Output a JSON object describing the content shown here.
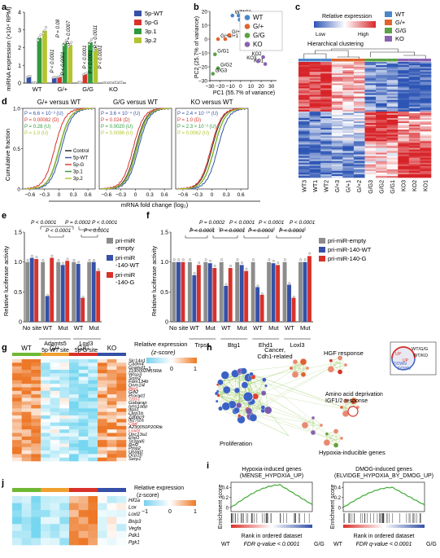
{
  "panels": {
    "a": {
      "letter": "a",
      "chart_data": {
        "type": "bar",
        "ylabel": "miRNA expression (×10⁴ RPM)",
        "ylim": [
          0,
          4
        ],
        "yticks": [
          "0",
          "1",
          "2",
          "3",
          "4"
        ],
        "categories": [
          "WT",
          "G/+",
          "G/G",
          "KO"
        ],
        "series": [
          {
            "name": "5p-WT",
            "color": "#3550a6",
            "values": [
              0.35,
              0.3,
              0.02,
              0.0
            ]
          },
          {
            "name": "5p-G",
            "color": "#d8322b",
            "values": [
              0.0,
              0.35,
              0.5,
              0.0
            ]
          },
          {
            "name": "3p.1",
            "color": "#2f9a3d",
            "values": [
              2.55,
              2.25,
              2.3,
              0.02
            ]
          },
          {
            "name": "3p.2",
            "color": "#b3c430",
            "values": [
              2.95,
              2.15,
              1.95,
              0.02
            ]
          }
        ],
        "annotations": [
          "P < 0.0001",
          "P = 0.08",
          "P < 0.0001",
          "P = 0.0007",
          "P < 0.0001",
          "P < 0.0001",
          "P = 0.0011",
          "P < 0.0001"
        ]
      }
    },
    "b": {
      "letter": "b",
      "chart_data": {
        "type": "scatter",
        "xlabel": "PC1 (55.7% of variance)",
        "ylabel": "PC2 (25.7% of variance)",
        "xlim": [
          -30,
          35
        ],
        "ylim": [
          -30,
          20
        ],
        "xticks": [
          "−30",
          "−20",
          "−10",
          "0",
          "10",
          "20",
          "30"
        ],
        "yticks": [
          "−30",
          "−20",
          "−10",
          "0",
          "10",
          "20"
        ],
        "series": [
          {
            "name": "WT",
            "color": "#4a86c8",
            "points": [
              {
                "x": -8,
                "y": 17,
                "label": "WT1"
              },
              {
                "x": -2,
                "y": 17,
                "label": "WT3"
              },
              {
                "x": -1,
                "y": 14,
                "label": "WT2"
              }
            ]
          },
          {
            "name": "G/+",
            "color": "#e0652d",
            "points": [
              {
                "x": -22,
                "y": 0,
                "label": "G/+3"
              },
              {
                "x": -15,
                "y": 0,
                "label": "G/+1"
              },
              {
                "x": -11,
                "y": 3,
                "label": "G/+2"
              }
            ]
          },
          {
            "name": "G/G",
            "color": "#5aa244",
            "points": [
              {
                "x": -25,
                "y": -11,
                "label": "G/G1"
              },
              {
                "x": -22,
                "y": -21,
                "label": "G/G2"
              },
              {
                "x": -27,
                "y": -25,
                "label": "G/G3"
              }
            ]
          },
          {
            "name": "KO",
            "color": "#8a62b0",
            "points": [
              {
                "x": 22,
                "y": -13,
                "label": "KO2"
              },
              {
                "x": 24,
                "y": -18,
                "label": "KO1"
              },
              {
                "x": 17,
                "y": -16,
                "label": "KO3"
              }
            ]
          }
        ]
      }
    },
    "c": {
      "letter": "c",
      "title": "Relative expression",
      "low": "Low",
      "high": "High",
      "subtitle": "Hierarchical clustering",
      "legend": [
        {
          "name": "WT",
          "color": "#4a86c8"
        },
        {
          "name": "G/+",
          "color": "#e0652d"
        },
        {
          "name": "G/G",
          "color": "#5aa244"
        },
        {
          "name": "KO",
          "color": "#8a62b0"
        }
      ],
      "columns": [
        "WT3",
        "WT1",
        "WT2",
        "G/+3",
        "G/+1",
        "G/+2",
        "G/G3",
        "G/G2",
        "G/G1",
        "KO3",
        "KO2",
        "KO1"
      ],
      "chart_data": {
        "type": "heatmap"
      }
    },
    "d": {
      "letter": "d",
      "xlabel": "mRNA fold change (log₂)",
      "ylabel": "Cumulative fraction",
      "xticks": [
        "−0.6",
        "−0.3",
        "0",
        "0.3",
        "0.6"
      ],
      "yticks": [
        "0",
        "0.5",
        "1.0"
      ],
      "legend": [
        {
          "name": "Control",
          "color": "#222222"
        },
        {
          "name": "5p-WT",
          "color": "#3550a6"
        },
        {
          "name": "5p-G",
          "color": "#d8322b"
        },
        {
          "name": "3p.1",
          "color": "#2f9a3d"
        },
        {
          "name": "3p.2",
          "color": "#b3c430"
        }
      ],
      "subpanels": [
        {
          "title": "G/+ versus WT",
          "pvals": [
            "P = 6.6 × 10⁻³ (U)",
            "P = 0.00082 (D)",
            "P = 0.28 (U)",
            "P = 1.0 (U)"
          ],
          "shifts": [
            0,
            0.05,
            -0.09,
            0.01,
            0.0
          ]
        },
        {
          "title": "G/G versus WT",
          "pvals": [
            "P = 3.6 × 10⁻⁴ (U)",
            "P = 0.024 (D)",
            "P = 0.0020 (U)",
            "P = 0.0086 (U)"
          ],
          "shifts": [
            0,
            0.06,
            -0.05,
            0.03,
            0.02
          ]
        },
        {
          "title": "KO versus WT",
          "pvals": [
            "P = 2.4 × 10⁻¹⁰ (U)",
            "P = 1.0 (D)",
            "P = 2.3 × 10⁻³ (U)",
            "P = 0.0062 (U)"
          ],
          "shifts": [
            0,
            0.12,
            -0.02,
            0.05,
            0.04
          ]
        }
      ],
      "chart_data": {
        "type": "line"
      }
    },
    "e": {
      "letter": "e",
      "ylabel": "Relative luciferase activity",
      "ylim": [
        0,
        1.5
      ],
      "yticks": [
        "0",
        "0.5",
        "1.0",
        "1.5"
      ],
      "pvals": [
        "P < 0.0001",
        "P = 0.0002",
        "P < 0.0001",
        "P < 0.0001",
        "P < 0.0001"
      ],
      "groups": [
        "No site",
        "WT",
        "Mut",
        "WT",
        "Mut"
      ],
      "group_labels": [
        "Adamts5\n5p-WT site",
        "Loxl3\n5p-G site"
      ],
      "legend": [
        {
          "name": "pri-miR\n-empty",
          "color": "#8c8c8c"
        },
        {
          "name": "pri-miR\n-140-WT",
          "color": "#3550a6"
        },
        {
          "name": "pri-miR\n-140-G",
          "color": "#d8322b"
        }
      ],
      "chart_data": {
        "type": "bar",
        "categories": [
          "No site",
          "WT",
          "Mut",
          "WT",
          "Mut"
        ],
        "series": [
          {
            "name": "pri-miR-empty",
            "values": [
              1.0,
              1.0,
              1.0,
              1.0,
              1.0
            ]
          },
          {
            "name": "pri-miR-140-WT",
            "values": [
              1.07,
              0.43,
              0.95,
              0.97,
              1.0
            ]
          },
          {
            "name": "pri-miR-140-G",
            "values": [
              1.05,
              1.07,
              1.02,
              0.4,
              0.85
            ]
          }
        ]
      }
    },
    "f": {
      "letter": "f",
      "ylabel": "Relative luciferase activity",
      "ylim": [
        0,
        1.5
      ],
      "yticks": [
        "0",
        "0.5",
        "1.0",
        "1.5"
      ],
      "pvals": [
        "P = 0.0002",
        "P < 0.0001",
        "P < 0.0001",
        "P < 0.0001",
        "P < 0.0001",
        "P < 0.0001",
        "P < 0.0001",
        "P < 0.0001"
      ],
      "groups": [
        "No site",
        "WT",
        "Mut",
        "WT",
        "Mut",
        "WT",
        "Mut",
        "WT",
        "Mut"
      ],
      "group_labels": [
        "Trps1",
        "Btg1",
        "Ehd1",
        "Loxl3"
      ],
      "legend": [
        {
          "name": "pri-miR-empty",
          "color": "#8c8c8c"
        },
        {
          "name": "pri-miR-140-WT",
          "color": "#3550a6"
        },
        {
          "name": "pri-miR-140-G",
          "color": "#d8322b"
        }
      ],
      "chart_data": {
        "type": "bar",
        "categories": [
          "No site",
          "WT",
          "Mut",
          "WT",
          "Mut",
          "WT",
          "Mut",
          "WT",
          "Mut"
        ],
        "series": [
          {
            "name": "pri-miR-empty",
            "values": [
              1.0,
              1.0,
              1.0,
              1.0,
              1.0,
              1.0,
              1.0,
              1.0,
              1.0
            ]
          },
          {
            "name": "pri-miR-140-WT",
            "values": [
              1.0,
              0.78,
              0.98,
              0.6,
              0.95,
              0.58,
              0.98,
              0.62,
              1.0
            ]
          },
          {
            "name": "pri-miR-140-G",
            "values": [
              1.0,
              0.95,
              0.9,
              0.9,
              0.85,
              0.45,
              0.95,
              0.4,
              1.1
            ]
          }
        ]
      }
    },
    "g": {
      "letter": "g",
      "title": "Relative expression",
      "subtitle": "(z-score)",
      "scale": [
        "−1",
        "0",
        "1"
      ],
      "groups": [
        "WT",
        "G/+",
        "G/G",
        "KO"
      ],
      "group_colors": [
        "#6fb833",
        "#f0a030",
        "#d8322b",
        "#3550a6"
      ],
      "genes": [
        "Slc14a1",
        "Cadm4",
        "Gramd1",
        "1190002N15Rik",
        "Wisp3",
        "Srpx2",
        "Fam134b",
        "Dnm1l4",
        "Btg1",
        "Gdi2",
        "Prorad1",
        "Trps1",
        "Gabarap",
        "Ivns1abp",
        "Itga1",
        "Larp1b",
        "Zdhhc9",
        "Ifi27l2a",
        "Ctgf",
        "A230050P20Rik",
        "Loxl3",
        "Unc13a1",
        "Ehd1",
        "St3gal6",
        "Rnf2",
        "Pmp2",
        "Ubald1",
        "Dcp1b",
        "Serp1"
      ],
      "red_genes": [
        "Btg1",
        "Trps1",
        "Ctgf",
        "Loxl3"
      ],
      "chart_data": {
        "type": "heatmap"
      }
    },
    "h": {
      "letter": "h",
      "labels": [
        "Cancer,\nCdh1-related",
        "HGF response",
        "Amino acid deprivation\nIGF1/2 response",
        "Proliferation",
        "Hypoxia-inducible genes"
      ],
      "legend": [
        "WT/G/G",
        "UP",
        "WT/KO",
        "UP",
        "DOWN",
        "DOWN"
      ]
    },
    "i": {
      "letter": "i",
      "ylabel": "Enrichment score",
      "plots": [
        {
          "title": "Hypoxia-induced genes\n(MENSE_HYPOXIA_UP)",
          "xlabel": "Rank in ordered dataset",
          "fdr": "FDR q-value < 0.0001",
          "left": "WT",
          "right": "G/G",
          "yticks": [
            "0",
            "0.2",
            "0.4"
          ],
          "peak": 0.45
        },
        {
          "title": "DMOG-induced genes\n(ELVIDGE_HYPOXIA_BY_DMOG_UP)",
          "xlabel": "Rank in ordered dataset",
          "fdr": "FDR q-value < 0.0001",
          "left": "WT",
          "right": "G/G",
          "yticks": [
            "0",
            "0.2",
            "0.4"
          ],
          "peak": 0.4
        }
      ],
      "chart_data": {
        "type": "line"
      }
    },
    "j": {
      "letter": "j",
      "title": "Relative expression",
      "subtitle": "(z-score)",
      "scale": [
        "−1",
        "0",
        "1"
      ],
      "genes": [
        "Hif1a",
        "Lox",
        "Loxl2",
        "Bnip3",
        "Vegfa",
        "Pdk1",
        "Pgk1"
      ],
      "chart_data": {
        "type": "heatmap"
      }
    }
  }
}
